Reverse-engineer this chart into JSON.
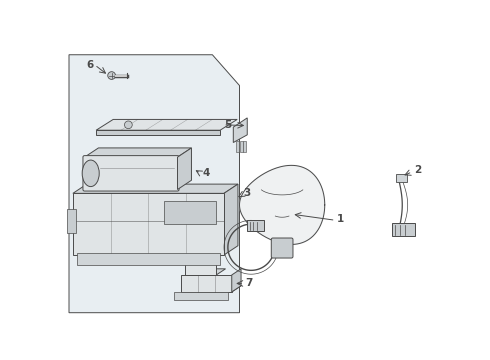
{
  "bg_color": "#ffffff",
  "panel_fill": "#e8eef2",
  "line_color": "#4a4a4a",
  "part_fill": "#e0e4e6",
  "part_fill2": "#d0d5d8",
  "part_fill3": "#c8cdd0",
  "label_color": "#111111",
  "lw": 0.7,
  "label_fs": 7.5
}
